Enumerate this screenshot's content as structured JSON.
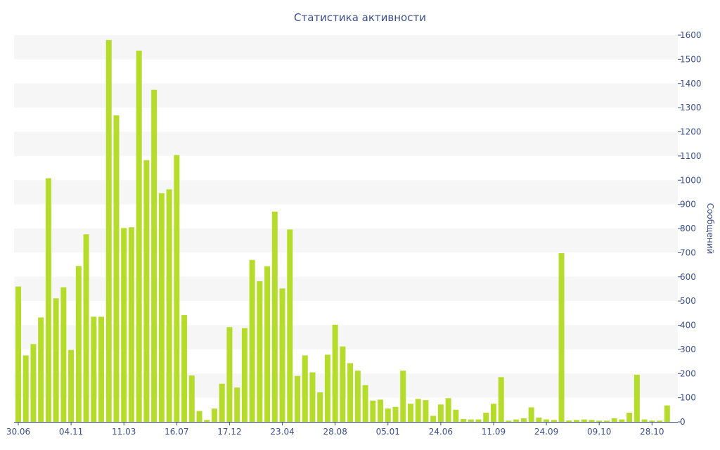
{
  "chart_data": {
    "type": "bar",
    "title": "Статистика активности",
    "xlabel": "",
    "ylabel": "Сообщений",
    "ylim": [
      0,
      1600
    ],
    "y_ticks": [
      "0",
      "100",
      "200",
      "300",
      "400",
      "500",
      "600",
      "700",
      "800",
      "900",
      "1000",
      "1100",
      "1200",
      "1300",
      "1400",
      "1500",
      "1600"
    ],
    "x_tick_labels": [
      {
        "bar_index": 0,
        "label": "30.06"
      },
      {
        "bar_index": 7,
        "label": "04.11"
      },
      {
        "bar_index": 14,
        "label": "11.03"
      },
      {
        "bar_index": 21,
        "label": "16.07"
      },
      {
        "bar_index": 28,
        "label": "17.12"
      },
      {
        "bar_index": 35,
        "label": "23.04"
      },
      {
        "bar_index": 42,
        "label": "28.08"
      },
      {
        "bar_index": 49,
        "label": "05.01"
      },
      {
        "bar_index": 56,
        "label": "24.06"
      },
      {
        "bar_index": 63,
        "label": "11.09"
      },
      {
        "bar_index": 70,
        "label": "24.09"
      },
      {
        "bar_index": 77,
        "label": "09.10"
      },
      {
        "bar_index": 84,
        "label": "28.10"
      }
    ],
    "values": [
      560,
      275,
      322,
      432,
      1008,
      511,
      557,
      298,
      645,
      776,
      435,
      435,
      1580,
      1268,
      802,
      805,
      1536,
      1083,
      1374,
      946,
      962,
      1104,
      442,
      192,
      45,
      8,
      55,
      158,
      392,
      142,
      388,
      670,
      582,
      644,
      870,
      552,
      796,
      190,
      275,
      205,
      122,
      278,
      402,
      312,
      243,
      212,
      152,
      88,
      92,
      55,
      62,
      212,
      75,
      95,
      90,
      25,
      72,
      98,
      50,
      12,
      10,
      10,
      38,
      75,
      185,
      5,
      10,
      15,
      60,
      18,
      10,
      8,
      698,
      6,
      8,
      10,
      8,
      5,
      5,
      15,
      10,
      38,
      195,
      10,
      5,
      5,
      68
    ],
    "grid": true,
    "legend": "none",
    "colors": {
      "bar": "#b5dc2a",
      "text": "#3b4f8f",
      "band": "#f6f6f6",
      "axis": "#3b4f8f"
    }
  }
}
